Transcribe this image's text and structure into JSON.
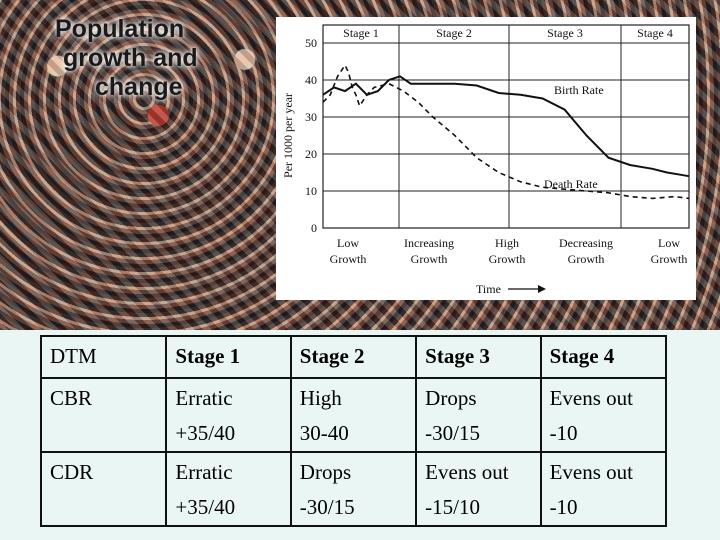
{
  "slide": {
    "title_lines": [
      "Population",
      "growth and",
      "change"
    ]
  },
  "chart_data": {
    "type": "line",
    "xlabel": "Time",
    "ylabel": "Per 1000 per year",
    "ylim": [
      0,
      50
    ],
    "yticks": [
      "0",
      "10",
      "20",
      "30",
      "40",
      "50"
    ],
    "stage_labels": [
      "Stage 1",
      "Stage 2",
      "Stage 3",
      "Stage 4"
    ],
    "growth_labels": [
      {
        "line1": "Low",
        "line2": "Growth"
      },
      {
        "line1": "Increasing",
        "line2": "Growth"
      },
      {
        "line1": "High",
        "line2": "Growth"
      },
      {
        "line1": "Decreasing",
        "line2": "Growth"
      },
      {
        "line1": "Low",
        "line2": "Growth"
      }
    ],
    "series": [
      {
        "name": "Birth Rate",
        "style": "solid",
        "x": [
          0,
          3,
          6,
          9,
          12,
          15,
          18,
          21,
          24,
          27,
          30,
          33,
          36,
          42,
          48,
          54,
          60,
          66,
          72,
          78,
          84,
          90,
          94,
          97,
          100
        ],
        "y": [
          36,
          38,
          37,
          39,
          36,
          37,
          40,
          41,
          39,
          39,
          39,
          39,
          39,
          38.5,
          36.5,
          36,
          35,
          32,
          25,
          19,
          17,
          16,
          15,
          14.5,
          14
        ]
      },
      {
        "name": "Death Rate",
        "style": "dashed",
        "x": [
          0,
          2,
          4,
          6,
          7,
          8,
          9,
          10,
          12,
          14,
          18,
          22,
          26,
          30,
          36,
          42,
          48,
          54,
          60,
          66,
          72,
          78,
          84,
          90,
          96,
          100
        ],
        "y": [
          34,
          36,
          41,
          44,
          42,
          38,
          36,
          33,
          36,
          38,
          39,
          37,
          34,
          30,
          25,
          19,
          15,
          12.5,
          11,
          10.5,
          10,
          9.5,
          8.5,
          8,
          8.5,
          8
        ]
      }
    ],
    "colors": {
      "line": "#111111",
      "grid": "#222222"
    }
  },
  "table": {
    "headers": [
      "DTM",
      "Stage 1",
      "Stage 2",
      "Stage 3",
      "Stage 4"
    ],
    "rows": [
      {
        "label": "CBR",
        "cells": [
          [
            "Erratic",
            "+35/40"
          ],
          [
            "High",
            "30-40"
          ],
          [
            "Drops",
            "-30/15"
          ],
          [
            "Evens out",
            "-10"
          ]
        ]
      },
      {
        "label": "CDR",
        "cells": [
          [
            "Erratic",
            "+35/40"
          ],
          [
            "Drops",
            "-30/15"
          ],
          [
            "Evens out",
            "-15/10"
          ],
          [
            "Evens out",
            "-10"
          ]
        ]
      }
    ]
  }
}
